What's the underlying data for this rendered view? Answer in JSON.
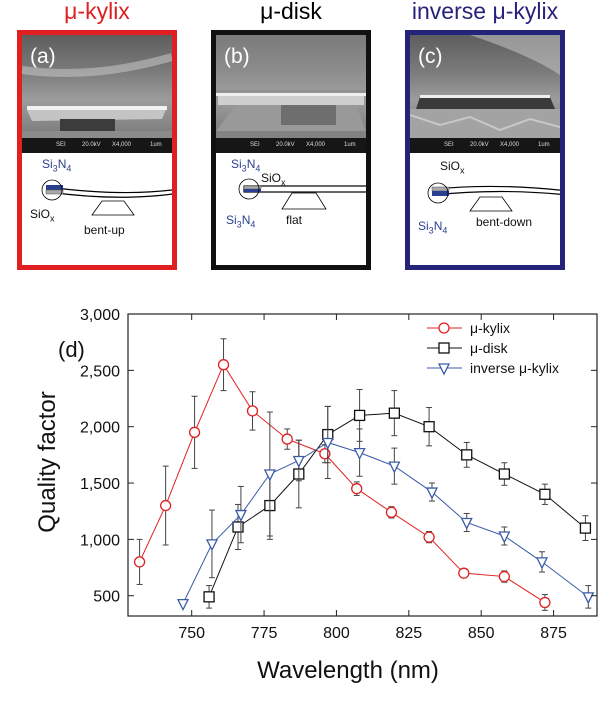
{
  "panels": [
    {
      "title": "μ-kylix",
      "label": "(a)",
      "top_layer": "Si3N4",
      "bottom_layer": "SiOx",
      "shape": "bent-up",
      "color": "#e02020"
    },
    {
      "title": "μ-disk",
      "label": "(b)",
      "top_layer": "SiOx",
      "bottom_layer": "Si3N4",
      "shape": "flat",
      "color": "#000000"
    },
    {
      "title": "inverse μ-kylix",
      "label": "(c)",
      "top_layer": "SiOx",
      "bottom_layer": "Si3N4",
      "shape": "bent-down",
      "color": "#26237a"
    }
  ],
  "sem_bar": {
    "sei": "SEI",
    "kv": "20.0kV",
    "mag": "X4,000",
    "scale": "1um"
  },
  "chart_data": {
    "type": "line",
    "panel_label": "(d)",
    "xlabel": "Wavelength (nm)",
    "ylabel": "Quality factor",
    "xlim": [
      728,
      890
    ],
    "ylim": [
      320,
      3000
    ],
    "xticks": [
      750,
      775,
      800,
      825,
      850,
      875
    ],
    "xtick_labels": [
      "750",
      "775",
      "800",
      "825",
      "850",
      "875"
    ],
    "yticks": [
      500,
      1000,
      1500,
      2000,
      2500,
      3000
    ],
    "ytick_labels": [
      "500",
      "1,000",
      "1,500",
      "2,000",
      "2,500",
      "3,000"
    ],
    "series": [
      {
        "name": "μ-kylix",
        "marker": "circle",
        "color": "#e02020",
        "x": [
          732,
          741,
          751,
          761,
          771,
          783,
          796,
          807,
          819,
          832,
          844,
          858,
          872
        ],
        "y": [
          800,
          1300,
          1950,
          2550,
          2140,
          1890,
          1760,
          1450,
          1240,
          1020,
          700,
          670,
          440
        ],
        "err": [
          200,
          350,
          320,
          230,
          170,
          90,
          80,
          60,
          50,
          50,
          40,
          50,
          70
        ]
      },
      {
        "name": "μ-disk",
        "marker": "square",
        "color": "#111111",
        "x": [
          756,
          766,
          777,
          787,
          797,
          808,
          820,
          832,
          845,
          858,
          872,
          886
        ],
        "y": [
          490,
          1110,
          1300,
          1580,
          1930,
          2100,
          2120,
          2000,
          1750,
          1580,
          1400,
          1100
        ],
        "err": [
          100,
          200,
          300,
          300,
          250,
          230,
          200,
          170,
          110,
          100,
          90,
          110
        ]
      },
      {
        "name": "inverse μ-kylix",
        "marker": "triangle-down",
        "color": "#3a5ba8",
        "x": [
          747,
          757,
          767,
          777,
          787,
          797,
          808,
          820,
          833,
          845,
          858,
          871,
          887
        ],
        "y": [
          430,
          960,
          1220,
          1580,
          1700,
          1860,
          1770,
          1650,
          1420,
          1150,
          1030,
          800,
          490
        ],
        "err": [
          0,
          300,
          250,
          550,
          180,
          320,
          210,
          160,
          80,
          80,
          80,
          90,
          100
        ]
      }
    ]
  }
}
